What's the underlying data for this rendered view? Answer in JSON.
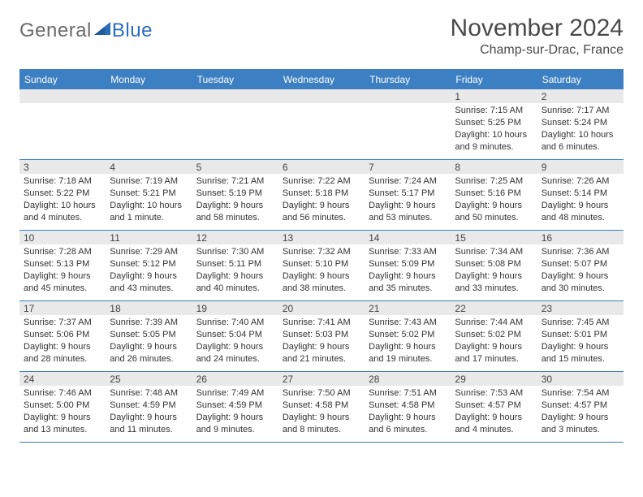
{
  "logo": {
    "part1": "General",
    "part2": "Blue"
  },
  "title": "November 2024",
  "subtitle": "Champ-sur-Drac, France",
  "colors": {
    "header_blue": "#3c7fc2",
    "daynum_bg": "#e9e9e9",
    "text": "#333333",
    "title_text": "#4a4a4a",
    "logo_gray": "#6a6a6a",
    "logo_blue": "#2a6db8"
  },
  "dow": [
    "Sunday",
    "Monday",
    "Tuesday",
    "Wednesday",
    "Thursday",
    "Friday",
    "Saturday"
  ],
  "weeks": [
    [
      {
        "n": "",
        "sr": "",
        "ss": "",
        "d1": "",
        "d2": ""
      },
      {
        "n": "",
        "sr": "",
        "ss": "",
        "d1": "",
        "d2": ""
      },
      {
        "n": "",
        "sr": "",
        "ss": "",
        "d1": "",
        "d2": ""
      },
      {
        "n": "",
        "sr": "",
        "ss": "",
        "d1": "",
        "d2": ""
      },
      {
        "n": "",
        "sr": "",
        "ss": "",
        "d1": "",
        "d2": ""
      },
      {
        "n": "1",
        "sr": "Sunrise: 7:15 AM",
        "ss": "Sunset: 5:25 PM",
        "d1": "Daylight: 10 hours",
        "d2": "and 9 minutes."
      },
      {
        "n": "2",
        "sr": "Sunrise: 7:17 AM",
        "ss": "Sunset: 5:24 PM",
        "d1": "Daylight: 10 hours",
        "d2": "and 6 minutes."
      }
    ],
    [
      {
        "n": "3",
        "sr": "Sunrise: 7:18 AM",
        "ss": "Sunset: 5:22 PM",
        "d1": "Daylight: 10 hours",
        "d2": "and 4 minutes."
      },
      {
        "n": "4",
        "sr": "Sunrise: 7:19 AM",
        "ss": "Sunset: 5:21 PM",
        "d1": "Daylight: 10 hours",
        "d2": "and 1 minute."
      },
      {
        "n": "5",
        "sr": "Sunrise: 7:21 AM",
        "ss": "Sunset: 5:19 PM",
        "d1": "Daylight: 9 hours",
        "d2": "and 58 minutes."
      },
      {
        "n": "6",
        "sr": "Sunrise: 7:22 AM",
        "ss": "Sunset: 5:18 PM",
        "d1": "Daylight: 9 hours",
        "d2": "and 56 minutes."
      },
      {
        "n": "7",
        "sr": "Sunrise: 7:24 AM",
        "ss": "Sunset: 5:17 PM",
        "d1": "Daylight: 9 hours",
        "d2": "and 53 minutes."
      },
      {
        "n": "8",
        "sr": "Sunrise: 7:25 AM",
        "ss": "Sunset: 5:16 PM",
        "d1": "Daylight: 9 hours",
        "d2": "and 50 minutes."
      },
      {
        "n": "9",
        "sr": "Sunrise: 7:26 AM",
        "ss": "Sunset: 5:14 PM",
        "d1": "Daylight: 9 hours",
        "d2": "and 48 minutes."
      }
    ],
    [
      {
        "n": "10",
        "sr": "Sunrise: 7:28 AM",
        "ss": "Sunset: 5:13 PM",
        "d1": "Daylight: 9 hours",
        "d2": "and 45 minutes."
      },
      {
        "n": "11",
        "sr": "Sunrise: 7:29 AM",
        "ss": "Sunset: 5:12 PM",
        "d1": "Daylight: 9 hours",
        "d2": "and 43 minutes."
      },
      {
        "n": "12",
        "sr": "Sunrise: 7:30 AM",
        "ss": "Sunset: 5:11 PM",
        "d1": "Daylight: 9 hours",
        "d2": "and 40 minutes."
      },
      {
        "n": "13",
        "sr": "Sunrise: 7:32 AM",
        "ss": "Sunset: 5:10 PM",
        "d1": "Daylight: 9 hours",
        "d2": "and 38 minutes."
      },
      {
        "n": "14",
        "sr": "Sunrise: 7:33 AM",
        "ss": "Sunset: 5:09 PM",
        "d1": "Daylight: 9 hours",
        "d2": "and 35 minutes."
      },
      {
        "n": "15",
        "sr": "Sunrise: 7:34 AM",
        "ss": "Sunset: 5:08 PM",
        "d1": "Daylight: 9 hours",
        "d2": "and 33 minutes."
      },
      {
        "n": "16",
        "sr": "Sunrise: 7:36 AM",
        "ss": "Sunset: 5:07 PM",
        "d1": "Daylight: 9 hours",
        "d2": "and 30 minutes."
      }
    ],
    [
      {
        "n": "17",
        "sr": "Sunrise: 7:37 AM",
        "ss": "Sunset: 5:06 PM",
        "d1": "Daylight: 9 hours",
        "d2": "and 28 minutes."
      },
      {
        "n": "18",
        "sr": "Sunrise: 7:39 AM",
        "ss": "Sunset: 5:05 PM",
        "d1": "Daylight: 9 hours",
        "d2": "and 26 minutes."
      },
      {
        "n": "19",
        "sr": "Sunrise: 7:40 AM",
        "ss": "Sunset: 5:04 PM",
        "d1": "Daylight: 9 hours",
        "d2": "and 24 minutes."
      },
      {
        "n": "20",
        "sr": "Sunrise: 7:41 AM",
        "ss": "Sunset: 5:03 PM",
        "d1": "Daylight: 9 hours",
        "d2": "and 21 minutes."
      },
      {
        "n": "21",
        "sr": "Sunrise: 7:43 AM",
        "ss": "Sunset: 5:02 PM",
        "d1": "Daylight: 9 hours",
        "d2": "and 19 minutes."
      },
      {
        "n": "22",
        "sr": "Sunrise: 7:44 AM",
        "ss": "Sunset: 5:02 PM",
        "d1": "Daylight: 9 hours",
        "d2": "and 17 minutes."
      },
      {
        "n": "23",
        "sr": "Sunrise: 7:45 AM",
        "ss": "Sunset: 5:01 PM",
        "d1": "Daylight: 9 hours",
        "d2": "and 15 minutes."
      }
    ],
    [
      {
        "n": "24",
        "sr": "Sunrise: 7:46 AM",
        "ss": "Sunset: 5:00 PM",
        "d1": "Daylight: 9 hours",
        "d2": "and 13 minutes."
      },
      {
        "n": "25",
        "sr": "Sunrise: 7:48 AM",
        "ss": "Sunset: 4:59 PM",
        "d1": "Daylight: 9 hours",
        "d2": "and 11 minutes."
      },
      {
        "n": "26",
        "sr": "Sunrise: 7:49 AM",
        "ss": "Sunset: 4:59 PM",
        "d1": "Daylight: 9 hours",
        "d2": "and 9 minutes."
      },
      {
        "n": "27",
        "sr": "Sunrise: 7:50 AM",
        "ss": "Sunset: 4:58 PM",
        "d1": "Daylight: 9 hours",
        "d2": "and 8 minutes."
      },
      {
        "n": "28",
        "sr": "Sunrise: 7:51 AM",
        "ss": "Sunset: 4:58 PM",
        "d1": "Daylight: 9 hours",
        "d2": "and 6 minutes."
      },
      {
        "n": "29",
        "sr": "Sunrise: 7:53 AM",
        "ss": "Sunset: 4:57 PM",
        "d1": "Daylight: 9 hours",
        "d2": "and 4 minutes."
      },
      {
        "n": "30",
        "sr": "Sunrise: 7:54 AM",
        "ss": "Sunset: 4:57 PM",
        "d1": "Daylight: 9 hours",
        "d2": "and 3 minutes."
      }
    ]
  ]
}
